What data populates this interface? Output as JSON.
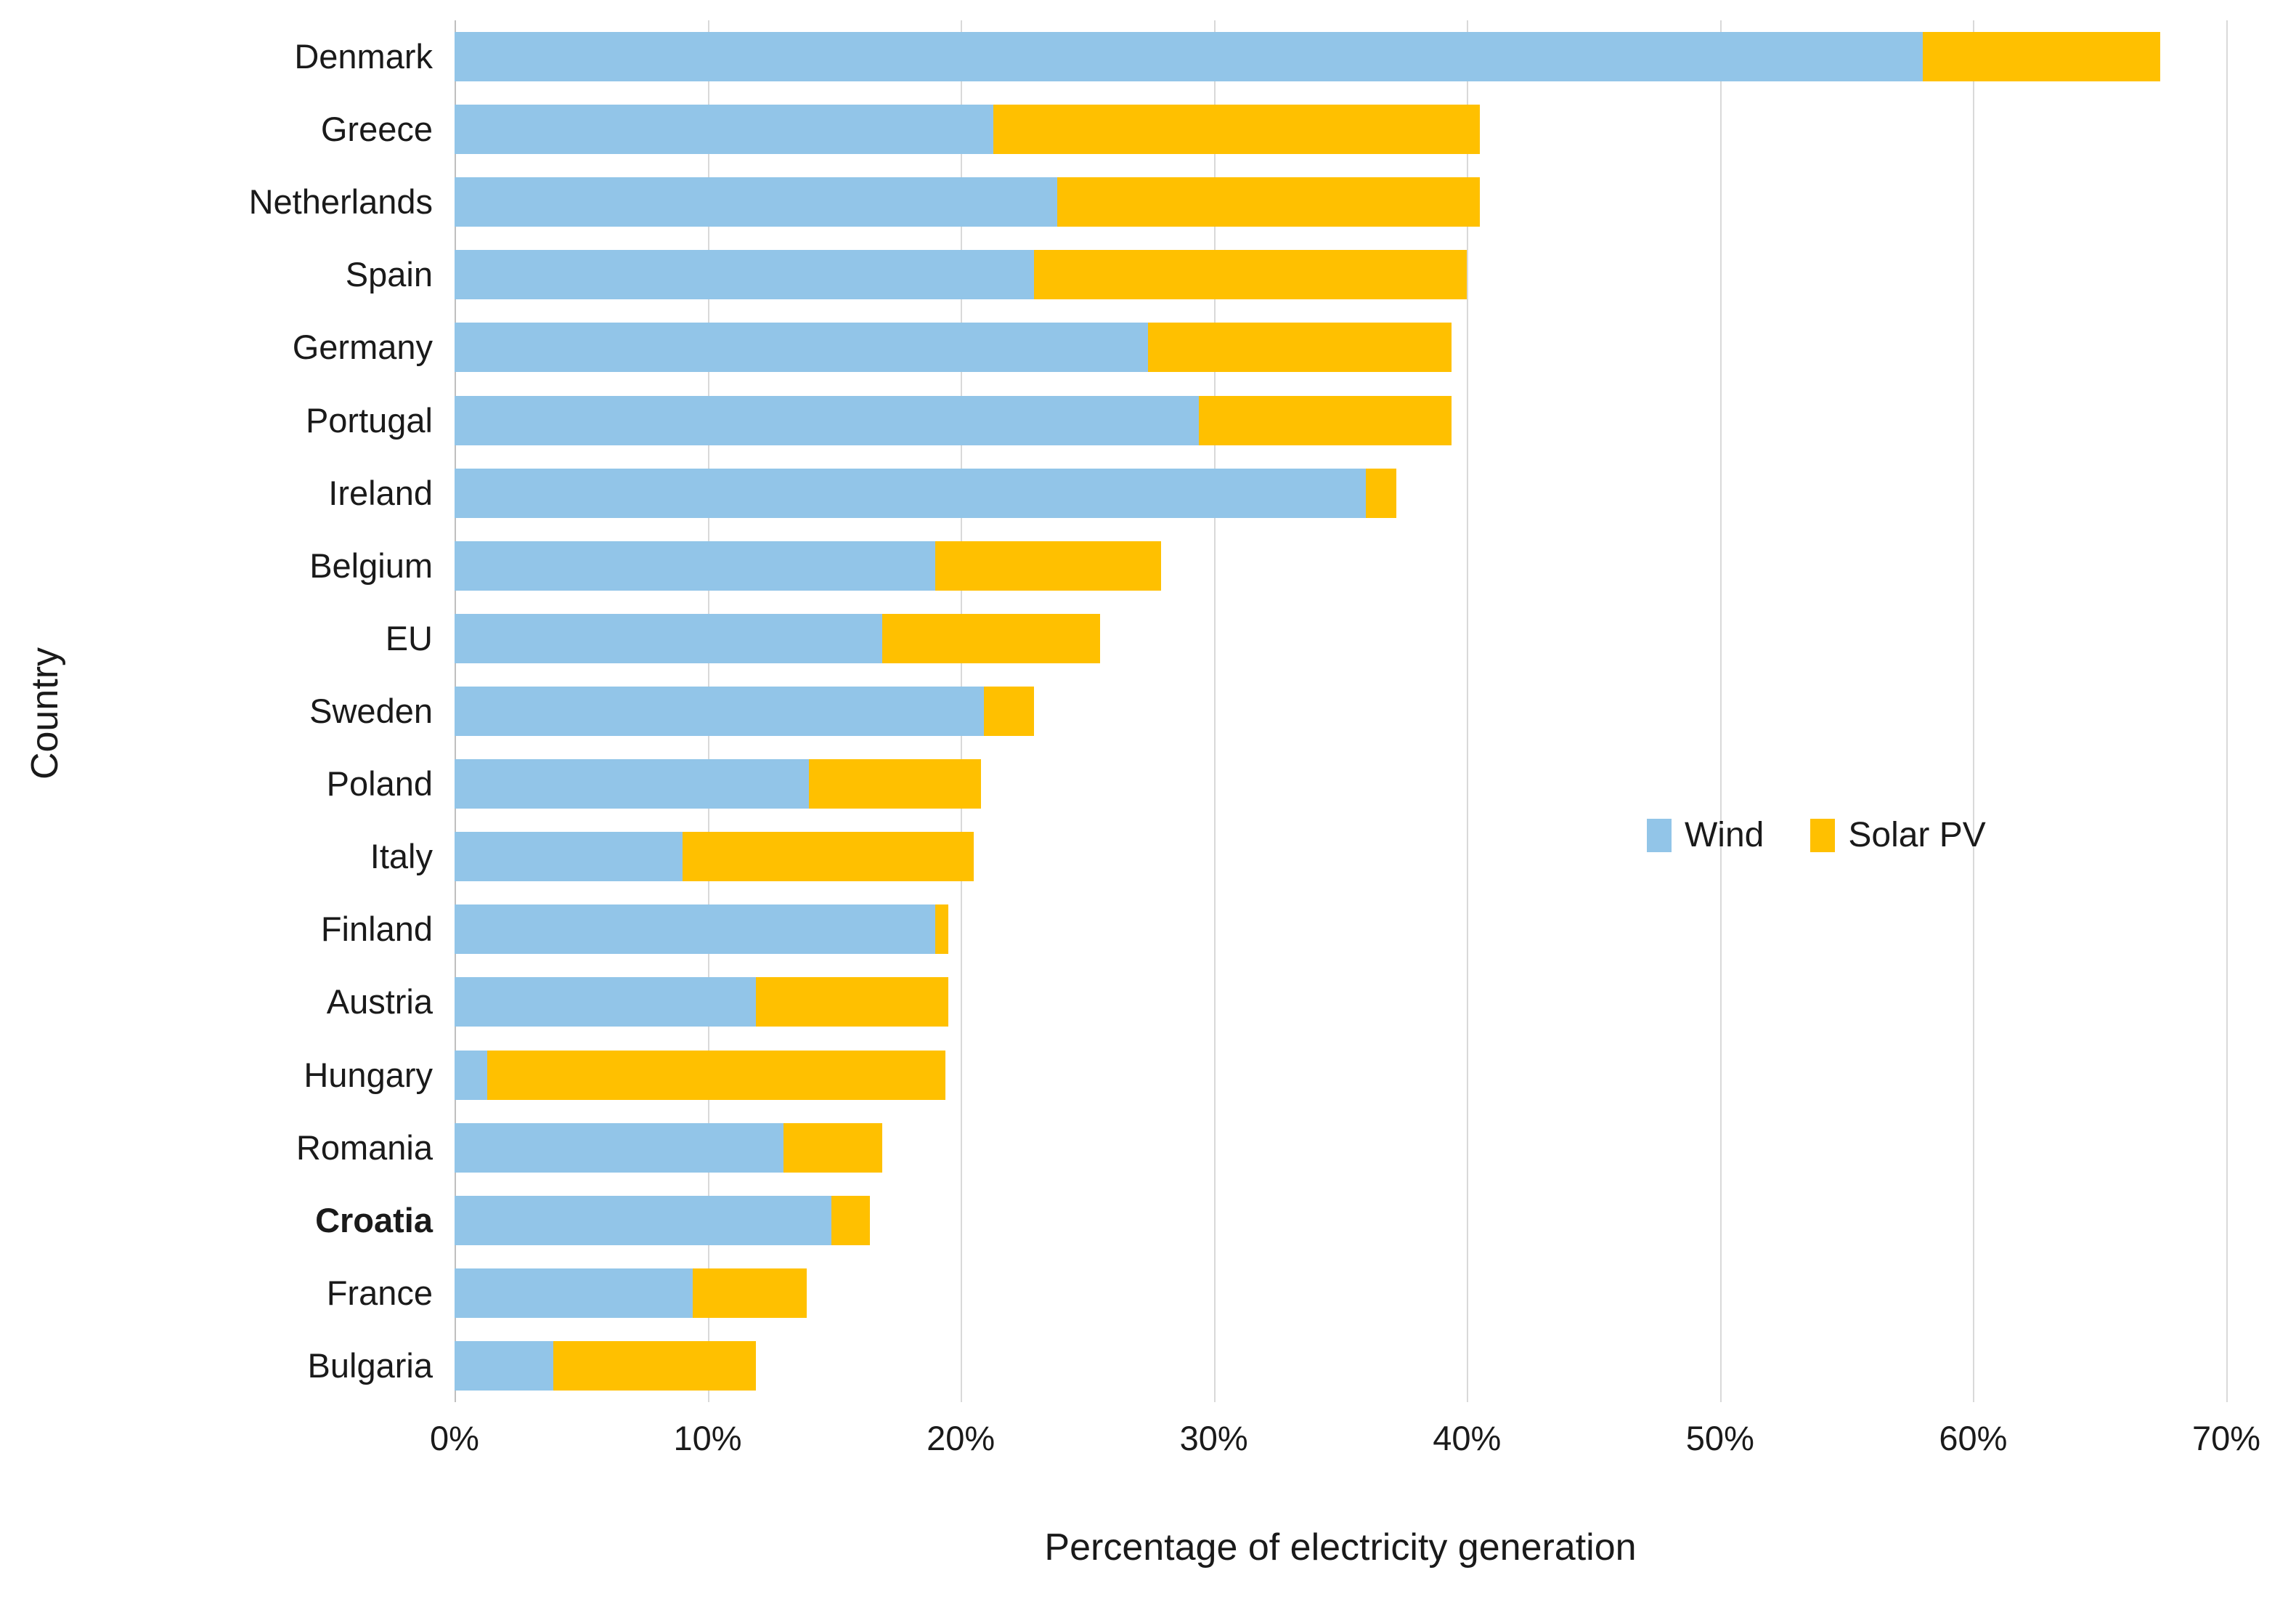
{
  "chart_data": {
    "type": "bar",
    "orientation": "horizontal",
    "stacked": true,
    "xlabel": "Percentage of electricity generation",
    "ylabel": "Country",
    "categories": [
      "Denmark",
      "Greece",
      "Netherlands",
      "Spain",
      "Germany",
      "Portugal",
      "Ireland",
      "Belgium",
      "EU",
      "Sweden",
      "Poland",
      "Italy",
      "Finland",
      "Austria",
      "Hungary",
      "Romania",
      "Croatia",
      "France",
      "Bulgaria"
    ],
    "bold_categories": [
      "Croatia"
    ],
    "series": [
      {
        "name": "Wind",
        "color": "#92C5E8",
        "values": [
          58.0,
          21.3,
          23.8,
          22.9,
          27.4,
          29.4,
          36.0,
          19.0,
          16.9,
          20.9,
          14.0,
          9.0,
          19.0,
          11.9,
          1.3,
          13.0,
          14.9,
          9.4,
          3.9
        ]
      },
      {
        "name": "Solar PV",
        "color": "#FFC000",
        "values": [
          9.4,
          19.2,
          16.7,
          17.1,
          12.0,
          10.0,
          1.2,
          8.9,
          8.6,
          2.0,
          6.8,
          11.5,
          0.5,
          7.6,
          18.1,
          3.9,
          1.5,
          4.5,
          8.0
        ]
      }
    ],
    "xlim": [
      0,
      70
    ],
    "xtick_step": 10,
    "xtick_labels": [
      "0%",
      "10%",
      "20%",
      "30%",
      "40%",
      "50%",
      "60%",
      "70%"
    ],
    "grid": true,
    "legend_position": "middle-right",
    "gridline_color": "#d9d9d9",
    "background_color": "#ffffff"
  }
}
